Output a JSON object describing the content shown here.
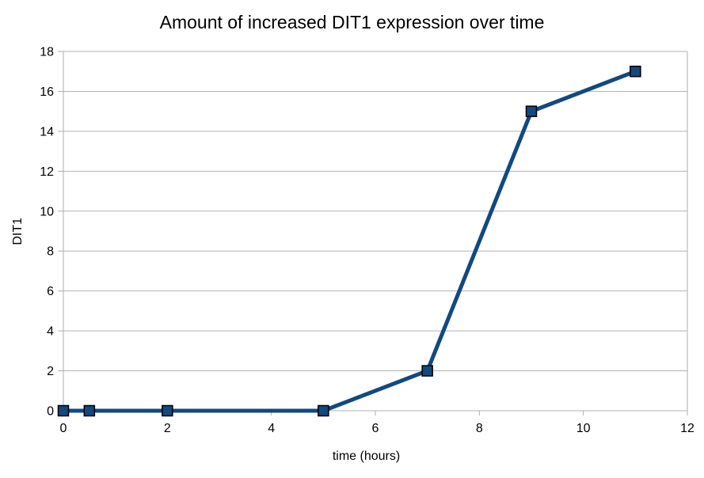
{
  "chart_data": {
    "type": "line",
    "title": "Amount of increased DIT1 expression over time",
    "xlabel": "time (hours)",
    "ylabel": "DIT1",
    "x": [
      0,
      0.5,
      2,
      5,
      7,
      9,
      11
    ],
    "series": [
      {
        "name": "DIT1",
        "y": [
          0,
          0,
          0,
          0,
          2,
          15,
          17
        ],
        "color": "#12497F",
        "line_width": 5,
        "marker": "square",
        "marker_size": 13,
        "marker_border_color": "#000000"
      }
    ],
    "xlim": [
      0,
      12
    ],
    "ylim": [
      0,
      18
    ],
    "x_ticks": [
      0,
      2,
      4,
      6,
      8,
      10,
      12
    ],
    "y_ticks": [
      0,
      2,
      4,
      6,
      8,
      10,
      12,
      14,
      16,
      18
    ],
    "grid": "horizontal",
    "legend": "none",
    "gridline_color": "#B3B3B3",
    "axis_line_color": "#ADADAD",
    "tick_font_size": 16,
    "background": "#FFFFFF"
  }
}
